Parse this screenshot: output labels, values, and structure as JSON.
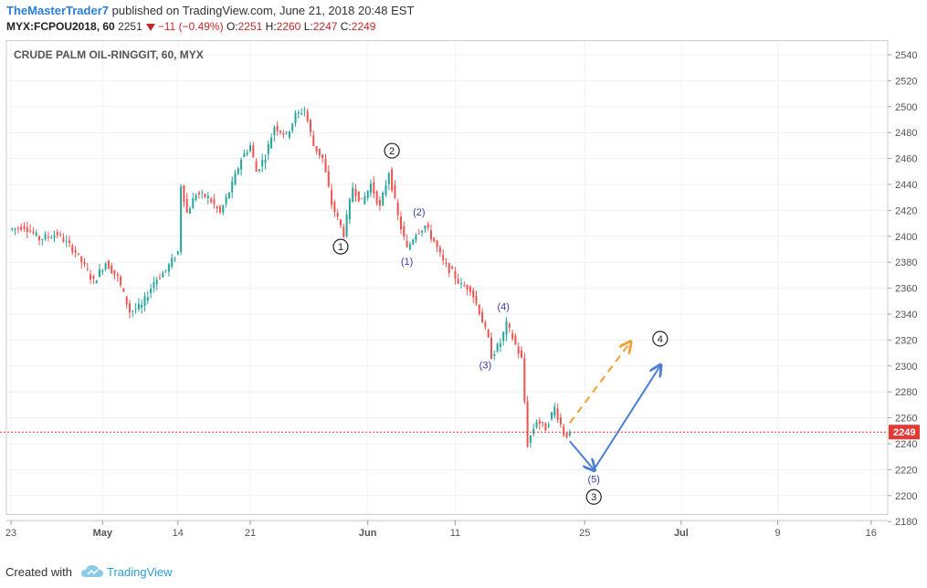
{
  "header": {
    "author": "TheMasterTrader7",
    "published_text": "published on TradingView.com, June 21, 2018 20:48 EST",
    "symbol": "MYX:FCPOU2018, 60",
    "last": "2251",
    "change": "−11 (−0.49%)",
    "o_label": "O:",
    "o_value": "2251",
    "h_label": "H:",
    "h_value": "2260",
    "l_label": "L:",
    "l_value": "2247",
    "c_label": "C:",
    "c_value": "2249"
  },
  "chart_title": "CRUDE PALM OIL-RINGGIT, 60, MYX",
  "footer": {
    "created_with": "Created with",
    "brand": "TradingView"
  },
  "colors": {
    "up": "#26a69a",
    "down": "#ef5350",
    "price_line": "#e53935",
    "projection_primary": "#4a7fd4",
    "projection_alt": "#f0a030",
    "wave_minor": "#3b3bb0"
  },
  "chart_data": {
    "type": "candlestick",
    "title": "CRUDE PALM OIL-RINGGIT, 60, MYX",
    "ylim": [
      2170,
      2550
    ],
    "y_ticks": [
      "2540",
      "2520",
      "2500",
      "2480",
      "2460",
      "2440",
      "2420",
      "2400",
      "2380",
      "2360",
      "2340",
      "2320",
      "2300",
      "2280",
      "2260",
      "2240",
      "2220",
      "2200",
      "2180"
    ],
    "x_ticks": [
      "23",
      "May",
      "14",
      "21",
      "Jun",
      "11",
      "25",
      "Jul",
      "9",
      "16"
    ],
    "current_price": "2249",
    "path": [
      {
        "i": 0,
        "p": 2405
      },
      {
        "i": 5,
        "p": 2408
      },
      {
        "i": 10,
        "p": 2398
      },
      {
        "i": 16,
        "p": 2402
      },
      {
        "i": 22,
        "p": 2388
      },
      {
        "i": 28,
        "p": 2365
      },
      {
        "i": 32,
        "p": 2380
      },
      {
        "i": 36,
        "p": 2368
      },
      {
        "i": 40,
        "p": 2342
      },
      {
        "i": 44,
        "p": 2346
      },
      {
        "i": 48,
        "p": 2365
      },
      {
        "i": 52,
        "p": 2374
      },
      {
        "i": 56,
        "p": 2388
      },
      {
        "i": 57,
        "p": 2440
      },
      {
        "i": 59,
        "p": 2418
      },
      {
        "i": 62,
        "p": 2433
      },
      {
        "i": 66,
        "p": 2430
      },
      {
        "i": 70,
        "p": 2418
      },
      {
        "i": 74,
        "p": 2440
      },
      {
        "i": 77,
        "p": 2460
      },
      {
        "i": 80,
        "p": 2470
      },
      {
        "i": 82,
        "p": 2450
      },
      {
        "i": 85,
        "p": 2462
      },
      {
        "i": 88,
        "p": 2485
      },
      {
        "i": 92,
        "p": 2478
      },
      {
        "i": 95,
        "p": 2493
      },
      {
        "i": 98,
        "p": 2498
      },
      {
        "i": 101,
        "p": 2470
      },
      {
        "i": 104,
        "p": 2460
      },
      {
        "i": 107,
        "p": 2425
      },
      {
        "i": 111,
        "p": 2402
      },
      {
        "i": 114,
        "p": 2438
      },
      {
        "i": 117,
        "p": 2426
      },
      {
        "i": 120,
        "p": 2440
      },
      {
        "i": 123,
        "p": 2422
      },
      {
        "i": 126,
        "p": 2450
      },
      {
        "i": 129,
        "p": 2415
      },
      {
        "i": 132,
        "p": 2390
      },
      {
        "i": 135,
        "p": 2403
      },
      {
        "i": 138,
        "p": 2408
      },
      {
        "i": 141,
        "p": 2396
      },
      {
        "i": 144,
        "p": 2380
      },
      {
        "i": 147,
        "p": 2372
      },
      {
        "i": 150,
        "p": 2362
      },
      {
        "i": 153,
        "p": 2360
      },
      {
        "i": 156,
        "p": 2342
      },
      {
        "i": 159,
        "p": 2320
      },
      {
        "i": 160,
        "p": 2308
      },
      {
        "i": 163,
        "p": 2318
      },
      {
        "i": 165,
        "p": 2332
      },
      {
        "i": 167,
        "p": 2322
      },
      {
        "i": 170,
        "p": 2305
      },
      {
        "i": 172,
        "p": 2240
      },
      {
        "i": 175,
        "p": 2258
      },
      {
        "i": 178,
        "p": 2252
      },
      {
        "i": 181,
        "p": 2268
      },
      {
        "i": 184,
        "p": 2248
      },
      {
        "i": 186,
        "p": 2246
      }
    ],
    "waves": [
      {
        "label": "1",
        "style": "circle",
        "bar": 110,
        "price": 2392
      },
      {
        "label": "2",
        "style": "circle",
        "bar": 127,
        "price": 2466
      },
      {
        "label": "(1)",
        "style": "paren",
        "bar": 132,
        "price": 2381
      },
      {
        "label": "(2)",
        "style": "paren",
        "bar": 136,
        "price": 2419
      },
      {
        "label": "(3)",
        "style": "paren",
        "bar": 158,
        "price": 2301
      },
      {
        "label": "(4)",
        "style": "paren",
        "bar": 164,
        "price": 2346
      },
      {
        "label": "(5)",
        "style": "paren",
        "bar": 194,
        "price": 2213
      },
      {
        "label": "3",
        "style": "circle",
        "bar": 194,
        "price": 2199
      },
      {
        "label": "4",
        "style": "circle",
        "bar": 216,
        "price": 2321
      }
    ],
    "projections": [
      {
        "style": "solid",
        "from": {
          "bar": 186,
          "price": 2242
        },
        "to": {
          "bar": 194,
          "price": 2220
        }
      },
      {
        "style": "solid",
        "from": {
          "bar": 194,
          "price": 2220
        },
        "to": {
          "bar": 216,
          "price": 2300
        }
      },
      {
        "style": "dashed",
        "from": {
          "bar": 186,
          "price": 2256
        },
        "to": {
          "bar": 206,
          "price": 2318
        }
      }
    ]
  }
}
